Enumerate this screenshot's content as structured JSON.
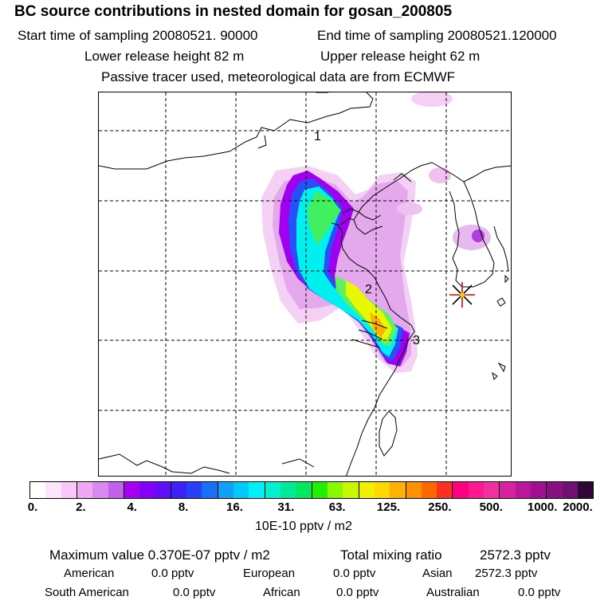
{
  "header": {
    "title": "BC  source contributions in nested domain for gosan_200805",
    "start_time": "Start time of sampling 20080521. 90000",
    "end_time": "End time of sampling 20080521.120000",
    "lower_height": "Lower release height   82 m",
    "upper_height": "Upper release height   62 m",
    "tracer_note": "Passive tracer used, meteorological data are from ECMWF"
  },
  "map": {
    "region_labels": [
      "3",
      "2",
      "1"
    ],
    "receptor_marker": "star-marker"
  },
  "colorbar": {
    "colors": [
      "#ffffff",
      "#fce6fc",
      "#f8c8f8",
      "#f0a8f4",
      "#d88af0",
      "#c060ec",
      "#a800f0",
      "#8400f8",
      "#6010f8",
      "#4020f8",
      "#2840f8",
      "#1870f8",
      "#10a0f8",
      "#00c8f8",
      "#00f0f8",
      "#00f0d0",
      "#00e898",
      "#00e860",
      "#20f000",
      "#88f800",
      "#c8f800",
      "#f0f000",
      "#ffd800",
      "#ffb000",
      "#ff9000",
      "#ff6800",
      "#ff3020",
      "#ff0080",
      "#ff1890",
      "#f030a0",
      "#d820a0",
      "#b81898",
      "#a01090",
      "#881080",
      "#701070",
      "#300838"
    ],
    "tick_labels": [
      "0.",
      "2.",
      "4.",
      "8.",
      "16.",
      "31.",
      "63.",
      "125.",
      "250.",
      "500.",
      "1000.",
      "2000."
    ],
    "units": "10E-10 pptv / m2"
  },
  "summary": {
    "max_value": "Maximum value  0.370E-07 pptv / m2",
    "total_mixing": "Total mixing ratio",
    "total_value": "2572.3 pptv",
    "regions": [
      {
        "name": "American",
        "value": "0.0 pptv"
      },
      {
        "name": "European",
        "value": "0.0 pptv"
      },
      {
        "name": "Asian",
        "value": "2572.3 pptv"
      },
      {
        "name": "South American",
        "value": "0.0 pptv"
      },
      {
        "name": "African",
        "value": "0.0 pptv"
      },
      {
        "name": "Australian",
        "value": "0.0 pptv"
      }
    ]
  }
}
